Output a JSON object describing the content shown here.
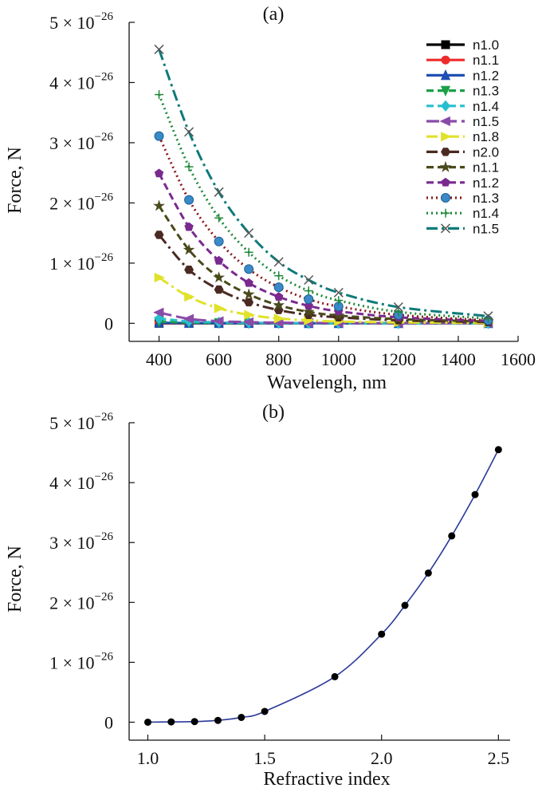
{
  "chart_data": [
    {
      "type": "line",
      "panel_label": "(a)",
      "xlabel": "Wavelengh, nm",
      "ylabel": "Force, N",
      "xlim": [
        300,
        1600
      ],
      "ylim": [
        -0.3,
        5
      ],
      "x_ticks": [
        "400",
        "600",
        "800",
        "1000",
        "1200",
        "1400",
        "1600"
      ],
      "y_ticks": [
        {
          "value": 0,
          "mant": "0",
          "exp": ""
        },
        {
          "value": 1,
          "mant": "1 × 10",
          "exp": "−26"
        },
        {
          "value": 2,
          "mant": "2 × 10",
          "exp": "−26"
        },
        {
          "value": 3,
          "mant": "3 × 10",
          "exp": "−26"
        },
        {
          "value": 4,
          "mant": "4 × 10",
          "exp": "−26"
        },
        {
          "value": 5,
          "mant": "5 × 10",
          "exp": "−26"
        }
      ],
      "y_unit_note": "y values in units of 1e-26 N",
      "x": [
        400,
        500,
        600,
        700,
        800,
        900,
        1000,
        1200,
        1500
      ],
      "legend_position": "top-right",
      "series": [
        {
          "name": "n1.0",
          "color": "#000000",
          "marker": "square",
          "dash": "solid",
          "values": [
            0,
            0,
            0,
            0,
            0,
            0,
            0,
            0,
            0
          ]
        },
        {
          "name": "n1.1",
          "color": "#ee2b2b",
          "marker": "circle",
          "dash": "solid",
          "values": [
            0.005,
            0.002,
            0.001,
            0.001,
            0,
            0,
            0,
            0,
            0
          ]
        },
        {
          "name": "n1.2",
          "color": "#1f4fb4",
          "marker": "triangle-up",
          "dash": "solid",
          "values": [
            0.01,
            0.004,
            0.002,
            0.001,
            0.001,
            0,
            0,
            0,
            0
          ]
        },
        {
          "name": "n1.3",
          "color": "#1ba048",
          "marker": "triangle-down",
          "dash": "dash",
          "values": [
            0.03,
            0.012,
            0.006,
            0.003,
            0.002,
            0.001,
            0.001,
            0,
            0
          ]
        },
        {
          "name": "n1.4",
          "color": "#27bfcf",
          "marker": "diamond",
          "dash": "dash",
          "values": [
            0.08,
            0.033,
            0.016,
            0.009,
            0.005,
            0.003,
            0.002,
            0.001,
            0
          ]
        },
        {
          "name": "n1.5",
          "color": "#8a4aa8",
          "marker": "triangle-left",
          "dash": "longdash",
          "values": [
            0.18,
            0.075,
            0.036,
            0.019,
            0.011,
            0.007,
            0.005,
            0.002,
            0.001
          ]
        },
        {
          "name": "n1.8",
          "color": "#e0e22a",
          "marker": "triangle-right",
          "dash": "dashdot",
          "values": [
            0.76,
            0.44,
            0.25,
            0.14,
            0.08,
            0.05,
            0.03,
            0.015,
            0.005
          ]
        },
        {
          "name": "n2.0",
          "color": "#4a2a22",
          "marker": "hexagon",
          "dash": "dashdot",
          "values": [
            1.47,
            0.89,
            0.56,
            0.35,
            0.22,
            0.14,
            0.1,
            0.05,
            0.02
          ]
        },
        {
          "name": "n1.1",
          "color": "#4a4a1c",
          "marker": "star",
          "dash": "dash",
          "values": [
            1.95,
            1.22,
            0.76,
            0.48,
            0.3,
            0.19,
            0.13,
            0.07,
            0.03
          ]
        },
        {
          "name": "n1.2",
          "color": "#7a2a8f",
          "marker": "pentagon",
          "dash": "dash",
          "values": [
            2.49,
            1.6,
            1.04,
            0.67,
            0.44,
            0.29,
            0.2,
            0.1,
            0.04
          ]
        },
        {
          "name": "n1.3",
          "color": "#8b1a1a",
          "marker": "ball",
          "dash": "dot",
          "values": [
            3.11,
            2.05,
            1.36,
            0.9,
            0.6,
            0.4,
            0.28,
            0.14,
            0.05
          ]
        },
        {
          "name": "n1.4",
          "color": "#1e8a3a",
          "marker": "plus",
          "dash": "dot",
          "values": [
            3.8,
            2.6,
            1.75,
            1.18,
            0.79,
            0.54,
            0.38,
            0.19,
            0.08
          ]
        },
        {
          "name": "n1.5",
          "color": "#0e7a7a",
          "marker": "x",
          "dash": "dashdot",
          "values": [
            4.55,
            3.18,
            2.18,
            1.5,
            1.02,
            0.72,
            0.51,
            0.27,
            0.12
          ]
        }
      ]
    },
    {
      "type": "line",
      "panel_label": "(b)",
      "xlabel": "Refractive index",
      "ylabel": "Force, N",
      "xlim": [
        0.92,
        2.55
      ],
      "ylim": [
        -0.3,
        5
      ],
      "x_ticks": [
        "1.0",
        "1.5",
        "2.0",
        "2.5"
      ],
      "y_ticks": [
        {
          "value": 0,
          "mant": "0",
          "exp": ""
        },
        {
          "value": 1,
          "mant": "1 × 10",
          "exp": "−26"
        },
        {
          "value": 2,
          "mant": "2 × 10",
          "exp": "−26"
        },
        {
          "value": 3,
          "mant": "3 × 10",
          "exp": "−26"
        },
        {
          "value": 4,
          "mant": "4 × 10",
          "exp": "−26"
        },
        {
          "value": 5,
          "mant": "5 × 10",
          "exp": "−26"
        }
      ],
      "y_unit_note": "y values in units of 1e-26 N",
      "line_color": "#2a3a9a",
      "point_color": "#000000",
      "x": [
        1.0,
        1.1,
        1.2,
        1.3,
        1.4,
        1.5,
        1.8,
        2.0,
        2.1,
        2.2,
        2.3,
        2.4,
        2.5
      ],
      "values": [
        0,
        0.005,
        0.01,
        0.03,
        0.08,
        0.18,
        0.76,
        1.47,
        1.95,
        2.49,
        3.11,
        3.8,
        4.55
      ]
    }
  ]
}
